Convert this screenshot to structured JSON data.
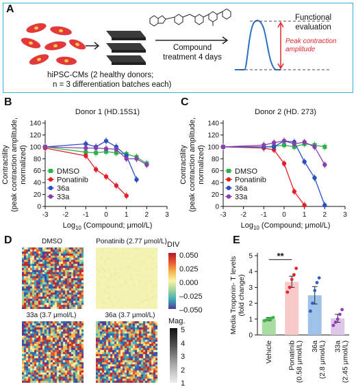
{
  "panel_labels": {
    "a": "A",
    "b": "B",
    "c": "C",
    "d": "D",
    "e": "E"
  },
  "panel_a": {
    "cells_caption_line1": "hiPSC-CMs (2 healthy donors;",
    "cells_caption_line2": "n = 3 differentiation batches each)",
    "treatment_line1": "Compound",
    "treatment_line2": "treatment 4 days",
    "functional_line1": "Functional",
    "functional_line2": "evaluation",
    "peak_line1": "Peak contraction",
    "peak_line2": "amplitude",
    "colors": {
      "border": "#37b3d6",
      "cell": "#e4393b",
      "trace": "#2a6fc4",
      "peak": "#e0272c"
    }
  },
  "shared_axis": {
    "ylabel_line1": "Contractility",
    "ylabel_line2": "(peak contraction amplitude,",
    "ylabel_line3": "normalized)",
    "xlabel_main": "Log",
    "xlabel_sub": "10",
    "xlabel_rest": " (Compound; μmol/L)"
  },
  "legend": [
    {
      "name": "DMSO",
      "color": "#2bb34a",
      "marker": "square"
    },
    {
      "name": "Ponatinib",
      "color": "#e3202a",
      "marker": "circle"
    },
    {
      "name": "36a",
      "color": "#2c4fc3",
      "marker": "circle"
    },
    {
      "name": "33a",
      "color": "#8a3fb1",
      "marker": "circle"
    }
  ],
  "chart_data": [
    {
      "type": "line",
      "title": "Donor 1 (HD.15S1)",
      "xlabel": "Log10 (Compound; μmol/L)",
      "ylabel": "Contractility (peak contraction amplitude, normalized)",
      "xlim": [
        -3,
        3
      ],
      "ylim": [
        0,
        140
      ],
      "xticks": [
        -3,
        -2,
        -1,
        0,
        1,
        2,
        3
      ],
      "yticks": [
        0,
        20,
        40,
        60,
        80,
        100,
        120,
        140
      ],
      "series": [
        {
          "name": "DMSO",
          "color": "#2bb34a",
          "x": [
            -3,
            -1,
            -0.5,
            0,
            0.5,
            1,
            1.5,
            2
          ],
          "y": [
            100,
            91,
            90,
            92,
            90,
            88,
            83,
            72
          ]
        },
        {
          "name": "Ponatinib",
          "color": "#e3202a",
          "x": [
            -3,
            -1,
            -0.5,
            0,
            0.5,
            1
          ],
          "y": [
            98,
            85,
            62,
            50,
            35,
            18
          ]
        },
        {
          "name": "36a",
          "color": "#2c4fc3",
          "x": [
            -3,
            -1,
            -0.5,
            0,
            0.5,
            1,
            1.5
          ],
          "y": [
            100,
            105,
            100,
            110,
            100,
            85,
            45
          ]
        },
        {
          "name": "33a",
          "color": "#8a3fb1",
          "x": [
            -3,
            -1,
            -0.5,
            0,
            0.5,
            1,
            1.5,
            2
          ],
          "y": [
            100,
            98,
            98,
            97,
            96,
            80,
            80,
            70
          ]
        }
      ]
    },
    {
      "type": "line",
      "title": "Donor 2 (HD. 273)",
      "xlabel": "Log10 (Compound; μmol/L)",
      "ylabel": "Contractility (peak contraction amplitude, normalized)",
      "xlim": [
        -3,
        3
      ],
      "ylim": [
        0,
        140
      ],
      "xticks": [
        -3,
        -2,
        -1,
        0,
        1,
        2,
        3
      ],
      "yticks": [
        0,
        20,
        40,
        60,
        80,
        100,
        120,
        140
      ],
      "series": [
        {
          "name": "DMSO",
          "color": "#2bb34a",
          "x": [
            -3,
            -1,
            -0.5,
            0,
            0.5,
            1,
            1.5,
            2
          ],
          "y": [
            100,
            100,
            101,
            103,
            100,
            105,
            103,
            100
          ]
        },
        {
          "name": "Ponatinib",
          "color": "#e3202a",
          "x": [
            -3,
            -1,
            -0.5,
            0,
            0.5,
            1
          ],
          "y": [
            100,
            98,
            95,
            72,
            25,
            2
          ]
        },
        {
          "name": "36a",
          "color": "#2c4fc3",
          "x": [
            -3,
            -1,
            -0.5,
            0,
            0.5,
            1,
            1.5,
            2
          ],
          "y": [
            100,
            100,
            100,
            110,
            108,
            75,
            48,
            2
          ]
        },
        {
          "name": "33a",
          "color": "#8a3fb1",
          "x": [
            -3,
            -1,
            -0.5,
            0,
            0.5,
            1,
            1.5,
            2
          ],
          "y": [
            100,
            103,
            107,
            110,
            105,
            108,
            100,
            70
          ]
        }
      ]
    },
    {
      "type": "bar",
      "ylabel": "Media Troponin- T levels (fold change)",
      "ylim": [
        0,
        5
      ],
      "yticks": [
        0,
        1,
        2,
        3,
        4,
        5
      ],
      "categories": [
        "Vehicle",
        "Ponatinib (0.58 μmol/L)",
        "36a (2.8 μmol/L)",
        "33a (2.45 μmol/L)"
      ],
      "values": [
        1.0,
        3.35,
        2.5,
        1.05
      ],
      "errors": [
        0.1,
        0.35,
        0.55,
        0.25
      ],
      "points": [
        [
          0.9,
          0.95,
          1.0,
          1.05,
          1.1
        ],
        [
          2.7,
          3.0,
          3.5,
          3.8,
          4.2
        ],
        [
          1.5,
          2.0,
          2.8,
          3.3,
          3.6
        ],
        [
          0.6,
          0.8,
          1.0,
          1.3,
          1.6
        ]
      ],
      "bar_colors": [
        "#a8dca0",
        "#f8c9c9",
        "#9fc3e8",
        "#ddc6e8"
      ],
      "point_colors": [
        "#3db14a",
        "#e2242b",
        "#2f5fc4",
        "#8e3fb3"
      ],
      "significance": "**"
    }
  ],
  "panel_d": {
    "titles": [
      "DMSO",
      "Ponatinib (2.77 μmol/L)",
      "33a (3.7 μmol/L)",
      "36a (3.7 μmol/L)"
    ],
    "div_title": "DIV",
    "div_ticks": [
      "0.050",
      "0.025",
      "0.000",
      "–0.025",
      "–0.050"
    ],
    "mag_title": "Mag.",
    "mag_ticks": [
      "5",
      "4",
      "3",
      "2",
      "1"
    ]
  },
  "panel_e": {
    "xlabels": [
      {
        "l1": "Vehicle",
        "l2": ""
      },
      {
        "l1": "Ponatinib",
        "l2": "(0.58 μmol/L)"
      },
      {
        "l1": "36a",
        "l2": "(2.8 μmol/L)"
      },
      {
        "l1": "33a",
        "l2": "(2.45 μmol/L)"
      }
    ]
  }
}
